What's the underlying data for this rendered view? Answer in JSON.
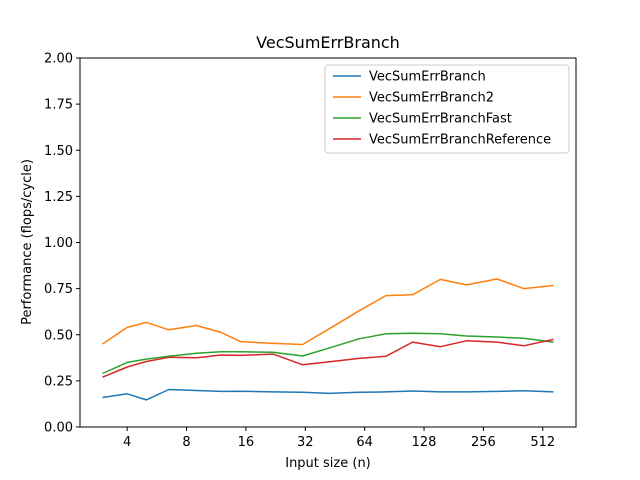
{
  "chart_data": {
    "type": "line",
    "title": "VecSumErrBranch",
    "xlabel": "Input size (n)",
    "ylabel": "Performance (flops/cycle)",
    "x_scale": "log2",
    "x_ticks": [
      4,
      8,
      16,
      32,
      64,
      128,
      256,
      512
    ],
    "x_tick_labels": [
      "4",
      "8",
      "16",
      "32",
      "64",
      "128",
      "256",
      "512"
    ],
    "ylim": [
      0.0,
      2.0
    ],
    "y_ticks": [
      0.0,
      0.25,
      0.5,
      0.75,
      1.0,
      1.25,
      1.5,
      1.75,
      2.0
    ],
    "y_tick_labels": [
      "0.00",
      "0.25",
      "0.50",
      "0.75",
      "1.00",
      "1.25",
      "1.50",
      "1.75",
      "2.00"
    ],
    "grid": false,
    "legend_position": "top-right",
    "x": [
      3,
      4,
      5,
      6.5,
      9,
      12,
      15,
      22,
      31,
      42,
      60,
      82,
      112,
      155,
      210,
      300,
      410,
      580
    ],
    "series": [
      {
        "name": "VecSumErrBranch",
        "color": "#1f77b4",
        "values": [
          0.16,
          0.18,
          0.147,
          0.203,
          0.198,
          0.193,
          0.194,
          0.19,
          0.188,
          0.182,
          0.188,
          0.19,
          0.195,
          0.19,
          0.19,
          0.193,
          0.196,
          0.19
        ]
      },
      {
        "name": "VecSumErrBranch2",
        "color": "#ff7f0e",
        "values": [
          0.45,
          0.54,
          0.567,
          0.527,
          0.55,
          0.512,
          0.463,
          0.453,
          0.447,
          0.53,
          0.63,
          0.712,
          0.717,
          0.8,
          0.77,
          0.802,
          0.75,
          0.767
        ]
      },
      {
        "name": "VecSumErrBranchFast",
        "color": "#2ca02c",
        "values": [
          0.29,
          0.35,
          0.368,
          0.383,
          0.4,
          0.408,
          0.408,
          0.405,
          0.385,
          0.427,
          0.478,
          0.505,
          0.508,
          0.505,
          0.493,
          0.488,
          0.481,
          0.46
        ]
      },
      {
        "name": "VecSumErrBranchReference",
        "color": "#d62728",
        "values": [
          0.27,
          0.325,
          0.355,
          0.378,
          0.375,
          0.39,
          0.388,
          0.395,
          0.337,
          0.353,
          0.372,
          0.383,
          0.46,
          0.435,
          0.467,
          0.46,
          0.44,
          0.475
        ]
      }
    ]
  }
}
